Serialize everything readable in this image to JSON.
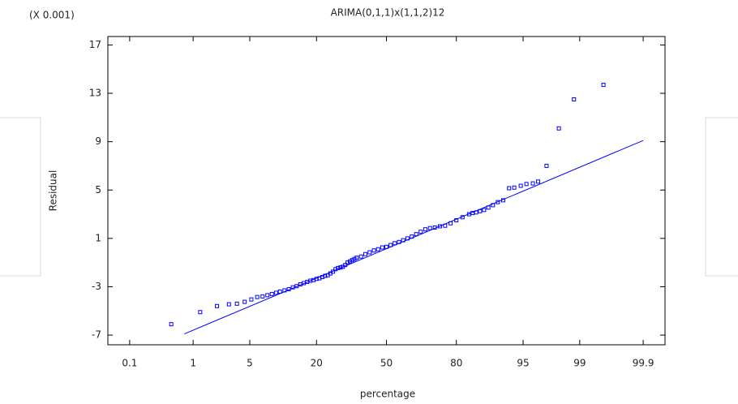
{
  "chart_data": {
    "type": "scatter",
    "scale_x": "probit",
    "title": "ARIMA(0,1,1)x(1,1,2)12",
    "y_multiplier": "(X 0.001)",
    "x_label": "percentage",
    "y_label": "Residual",
    "xlim": [
      0.04,
      99.96
    ],
    "ylim": [
      -7.8,
      17.7
    ],
    "xticks": [
      0.1,
      1,
      5,
      20,
      50,
      80,
      95,
      99,
      99.9
    ],
    "yticks": [
      -7,
      -3,
      1,
      5,
      9,
      13,
      17
    ],
    "series": [
      {
        "name": "Residual",
        "color": "#0000ff",
        "x": [
          0.48,
          1.25,
          2.07,
          2.9,
          3.6,
          4.4,
          5.2,
          6.0,
          6.8,
          7.6,
          8.4,
          9.2,
          10,
          11,
          12,
          13,
          14,
          15,
          16,
          17,
          18,
          19,
          20,
          21,
          22,
          23,
          24,
          25,
          26,
          27,
          28,
          29,
          30,
          31,
          32,
          33,
          34,
          35,
          36,
          38,
          40,
          42,
          44,
          46,
          48,
          50,
          52,
          54,
          56,
          58,
          60,
          62,
          64,
          66,
          68,
          70,
          72,
          74,
          76,
          78,
          80,
          82,
          84,
          85,
          86,
          87,
          88,
          89,
          90,
          91,
          92,
          93,
          93.8,
          94.7,
          95.4,
          96.1,
          96.6,
          97.3,
          98.1,
          98.8,
          99.55
        ],
        "values": [
          -6.1,
          -5.1,
          -4.6,
          -4.45,
          -4.4,
          -4.25,
          -4.05,
          -3.85,
          -3.8,
          -3.7,
          -3.6,
          -3.5,
          -3.4,
          -3.3,
          -3.2,
          -3.05,
          -2.95,
          -2.8,
          -2.7,
          -2.6,
          -2.5,
          -2.45,
          -2.35,
          -2.3,
          -2.2,
          -2.1,
          -2.05,
          -1.9,
          -1.75,
          -1.55,
          -1.45,
          -1.4,
          -1.35,
          -1.2,
          -1.0,
          -0.9,
          -0.8,
          -0.7,
          -0.6,
          -0.5,
          -0.3,
          -0.15,
          0.0,
          0.1,
          0.25,
          0.3,
          0.45,
          0.6,
          0.7,
          0.85,
          1.0,
          1.15,
          1.35,
          1.55,
          1.75,
          1.85,
          1.9,
          2.0,
          2.05,
          2.25,
          2.5,
          2.75,
          3.0,
          3.1,
          3.15,
          3.25,
          3.35,
          3.55,
          3.75,
          4.0,
          4.15,
          5.15,
          5.2,
          5.35,
          5.5,
          5.55,
          5.7,
          7.0,
          10.1,
          12.5,
          13.7
        ]
      }
    ],
    "fit_line": {
      "color": "#0000ff",
      "x": [
        0.75,
        99.9
      ],
      "values": [
        -6.9,
        9.1
      ]
    }
  }
}
